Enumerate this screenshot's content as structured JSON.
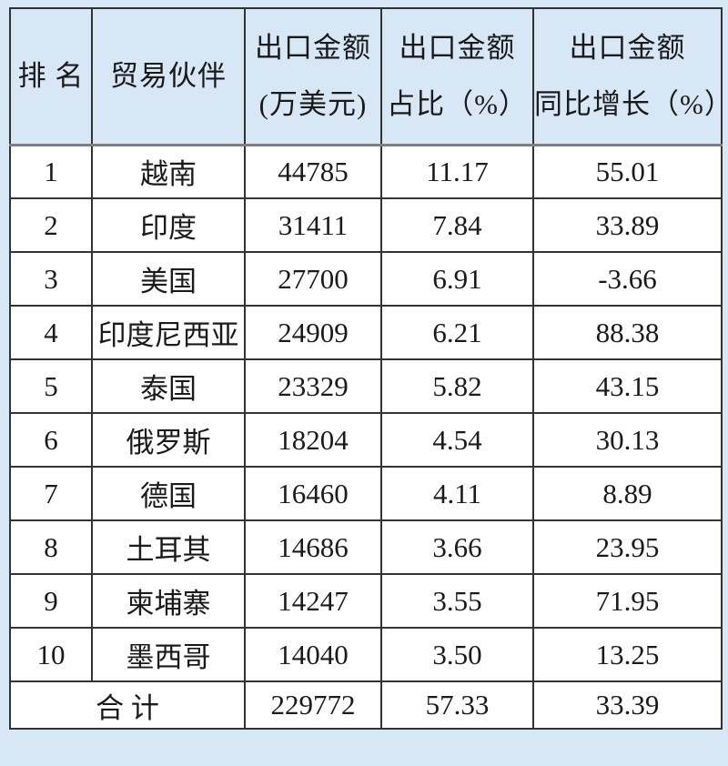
{
  "colors": {
    "bg": "#d8e7f5",
    "border": "#333333",
    "header_divider": "#7f7f7f",
    "cell_bg": "#ffffff",
    "text": "#1a1a1a"
  },
  "table": {
    "header": {
      "rank": "排 名",
      "partner": "贸易伙伴",
      "amount_line1": "出口金额",
      "amount_line2": "(万美元)",
      "share_line1": "出口金额",
      "share_line2": "占比（%）",
      "growth_line1": "出口金额",
      "growth_line2": "同比增长（%）"
    },
    "rows": [
      {
        "rank": "1",
        "partner": "越南",
        "amount": "44785",
        "share": "11.17",
        "growth": "55.01"
      },
      {
        "rank": "2",
        "partner": "印度",
        "amount": "31411",
        "share": "7.84",
        "growth": "33.89"
      },
      {
        "rank": "3",
        "partner": "美国",
        "amount": "27700",
        "share": "6.91",
        "growth": "-3.66"
      },
      {
        "rank": "4",
        "partner": "印度尼西亚",
        "amount": "24909",
        "share": "6.21",
        "growth": "88.38"
      },
      {
        "rank": "5",
        "partner": "泰国",
        "amount": "23329",
        "share": "5.82",
        "growth": "43.15"
      },
      {
        "rank": "6",
        "partner": "俄罗斯",
        "amount": "18204",
        "share": "4.54",
        "growth": "30.13"
      },
      {
        "rank": "7",
        "partner": "德国",
        "amount": "16460",
        "share": "4.11",
        "growth": "8.89"
      },
      {
        "rank": "8",
        "partner": "土耳其",
        "amount": "14686",
        "share": "3.66",
        "growth": "23.95"
      },
      {
        "rank": "9",
        "partner": "柬埔寨",
        "amount": "14247",
        "share": "3.55",
        "growth": "71.95"
      },
      {
        "rank": "10",
        "partner": "墨西哥",
        "amount": "14040",
        "share": "3.50",
        "growth": "13.25"
      }
    ],
    "total": {
      "label": "合 计",
      "amount": "229772",
      "share": "57.33",
      "growth": "33.39"
    }
  }
}
